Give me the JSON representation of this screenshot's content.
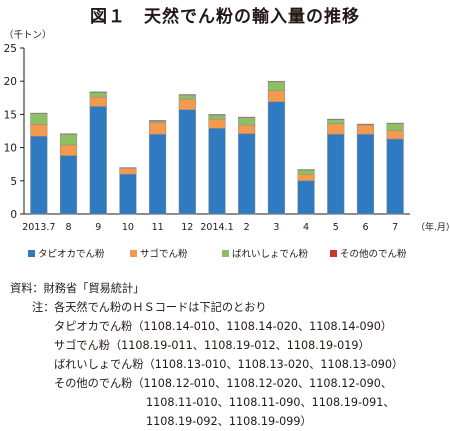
{
  "title": "図１　天然でん粉の輸入量の推移",
  "chart_data": {
    "type": "bar",
    "stacked": true,
    "ylabel": "（千トン）",
    "xunit": "（年.月）",
    "ylim": [
      0,
      25
    ],
    "yticks": [
      0,
      5,
      10,
      15,
      20,
      25
    ],
    "grid": false,
    "legend_position": "bottom",
    "categories": [
      "2013.7",
      "8",
      "9",
      "10",
      "11",
      "12",
      "2014.1",
      "2",
      "3",
      "4",
      "5",
      "6",
      "7"
    ],
    "series": [
      {
        "name": "タピオカでん粉",
        "color": "#2f7ac0",
        "values": [
          11.7,
          8.8,
          16.2,
          6.0,
          12.0,
          15.7,
          12.9,
          12.1,
          16.9,
          5.0,
          12.0,
          12.0,
          11.3
        ]
      },
      {
        "name": "サゴでん粉",
        "color": "#f39a4f",
        "values": [
          1.8,
          1.6,
          1.4,
          0.9,
          1.8,
          1.6,
          1.4,
          1.3,
          1.7,
          1.0,
          1.6,
          1.4,
          1.3
        ]
      },
      {
        "name": "ばれいしょでん粉",
        "color": "#8cc163",
        "values": [
          1.6,
          1.6,
          0.7,
          0.05,
          0.2,
          0.6,
          0.6,
          1.1,
          1.3,
          0.6,
          0.6,
          0.05,
          1.0
        ]
      },
      {
        "name": "その他のでん粉",
        "color": "#c0392b",
        "values": [
          0.1,
          0.1,
          0.1,
          0.05,
          0.1,
          0.1,
          0.1,
          0.1,
          0.1,
          0.1,
          0.1,
          0.1,
          0.1
        ]
      }
    ]
  },
  "notes": {
    "source_label": "資料：",
    "source_text": "財務省「貿易統計」",
    "note_label": "注：",
    "note_intro": "各天然でん粉のＨＳコードは下記のとおり",
    "tapioca": "タピオカでん粉（1108.14-010、1108.14-020、1108.14-090）",
    "sago": "サゴでん粉（1108.19-011、1108.19-012、1108.19-019）",
    "potato": "ばれいしょでん粉（1108.13-010、1108.13-020、1108.13-090）",
    "other_1": "その他のでん粉（1108.12-010、1108.12-020、1108.12-090、",
    "other_2": "1108.11-010、1108.11-090、1108.19-091、",
    "other_3": "1108.19-092、1108.19-099）"
  }
}
